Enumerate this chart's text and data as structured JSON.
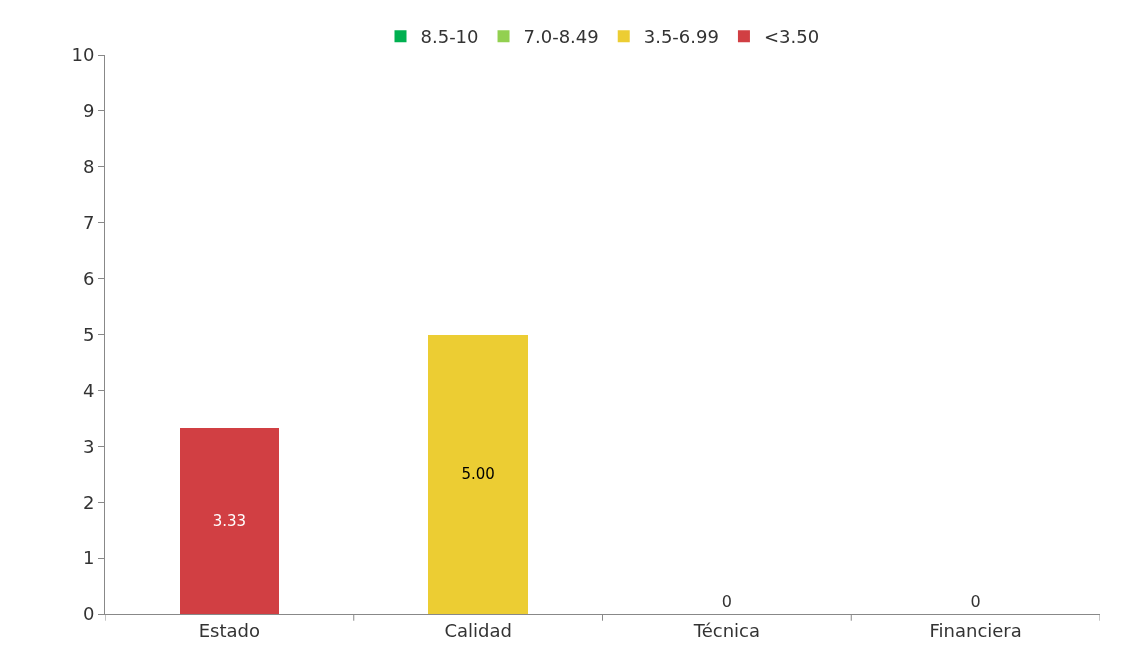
{
  "chart_data": {
    "type": "bar",
    "stacked": true,
    "categories": [
      "Estado",
      "Calidad",
      "Técnica",
      "Financiera"
    ],
    "series": [
      {
        "name": "<3.50",
        "color": "#d13f43",
        "values": [
          3.33,
          null,
          0,
          0
        ],
        "value_labels": [
          "3.33",
          null,
          "0",
          "0"
        ]
      },
      {
        "name": "3.5-6.99",
        "color": "#eccd33",
        "values": [
          null,
          5.0,
          null,
          null
        ],
        "value_labels": [
          null,
          "5.00",
          null,
          null
        ]
      },
      {
        "name": "7.0-8.49",
        "color": "#92d050",
        "values": [
          null,
          null,
          null,
          null
        ]
      },
      {
        "name": "8.5-10",
        "color": "#00b050",
        "values": [
          null,
          null,
          null,
          null
        ]
      }
    ],
    "ylim": [
      0,
      10
    ],
    "yticks": [
      0,
      1,
      2,
      3,
      4,
      5,
      6,
      7,
      8,
      9,
      10
    ],
    "grid": false,
    "legend": "top"
  }
}
